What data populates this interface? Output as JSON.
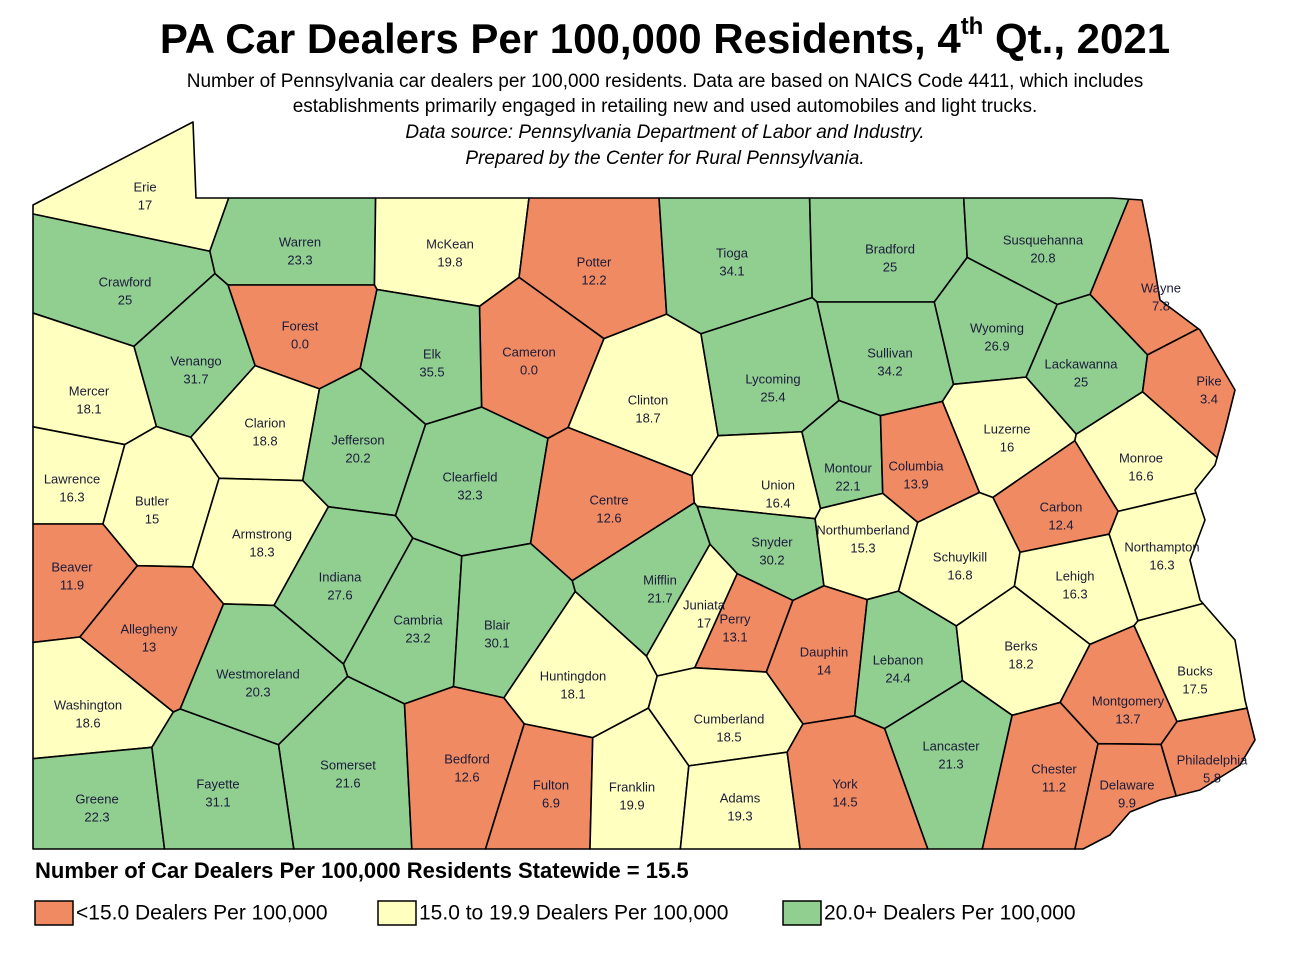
{
  "title": {
    "main": "PA Car Dealers Per 100,000 Residents, 4",
    "superscript": "th",
    "rest": " Qt., 2021"
  },
  "subtitle": [
    "Number of Pennsylvania car dealers per 100,000 residents. Data are based on NAICS Code 4411, which includes",
    "establishments primarily engaged in retailing new and used automobiles and light trucks.",
    "Data source: Pennsylvania Department of Labor and Industry.",
    "Prepared by the Center for Rural Pennsylvania."
  ],
  "counties": [
    {
      "name": "Erie",
      "value": 17
    },
    {
      "name": "Warren",
      "value": 23.3
    },
    {
      "name": "McKean",
      "value": 19.8
    },
    {
      "name": "Potter",
      "value": 12.2
    },
    {
      "name": "Tioga",
      "value": 34.1
    },
    {
      "name": "Bradford",
      "value": 25
    },
    {
      "name": "Susquehanna",
      "value": 20.8
    },
    {
      "name": "Wayne",
      "value": 7.8
    },
    {
      "name": "Crawford",
      "value": 25
    },
    {
      "name": "Forest",
      "value": 0,
      "value_label": "0.0"
    },
    {
      "name": "Cameron",
      "value": 0,
      "value_label": "0.0"
    },
    {
      "name": "Elk",
      "value": 35.5
    },
    {
      "name": "Venango",
      "value": 31.7
    },
    {
      "name": "Mercer",
      "value": 18.1
    },
    {
      "name": "Clarion",
      "value": 18.8
    },
    {
      "name": "Jefferson",
      "value": 20.2
    },
    {
      "name": "Clearfield",
      "value": 32.3
    },
    {
      "name": "Clinton",
      "value": 18.7
    },
    {
      "name": "Lycoming",
      "value": 25.4
    },
    {
      "name": "Sullivan",
      "value": 34.2
    },
    {
      "name": "Wyoming",
      "value": 26.9
    },
    {
      "name": "Lackawanna",
      "value": 25
    },
    {
      "name": "Pike",
      "value": 3.4
    },
    {
      "name": "Luzerne",
      "value": 16
    },
    {
      "name": "Lawrence",
      "value": 16.3
    },
    {
      "name": "Butler",
      "value": 15
    },
    {
      "name": "Centre",
      "value": 12.6
    },
    {
      "name": "Union",
      "value": 16.4
    },
    {
      "name": "Montour",
      "value": 22.1
    },
    {
      "name": "Columbia",
      "value": 13.9
    },
    {
      "name": "Monroe",
      "value": 16.6
    },
    {
      "name": "Carbon",
      "value": 12.4
    },
    {
      "name": "Armstrong",
      "value": 18.3
    },
    {
      "name": "Snyder",
      "value": 30.2
    },
    {
      "name": "Northumberland",
      "value": 15.3
    },
    {
      "name": "Schuylkill",
      "value": 16.8
    },
    {
      "name": "Northampton",
      "value": 16.3
    },
    {
      "name": "Beaver",
      "value": 11.9
    },
    {
      "name": "Indiana",
      "value": 27.6
    },
    {
      "name": "Mifflin",
      "value": 21.7
    },
    {
      "name": "Lehigh",
      "value": 16.3
    },
    {
      "name": "Juniata",
      "value": 17
    },
    {
      "name": "Allegheny",
      "value": 13
    },
    {
      "name": "Cambria",
      "value": 23.2
    },
    {
      "name": "Blair",
      "value": 30.1
    },
    {
      "name": "Perry",
      "value": 13.1
    },
    {
      "name": "Dauphin",
      "value": 14
    },
    {
      "name": "Lebanon",
      "value": 24.4
    },
    {
      "name": "Berks",
      "value": 18.2
    },
    {
      "name": "Westmoreland",
      "value": 20.3
    },
    {
      "name": "Huntingdon",
      "value": 18.1
    },
    {
      "name": "Bucks",
      "value": 17.5
    },
    {
      "name": "Montgomery",
      "value": 13.7
    },
    {
      "name": "Washington",
      "value": 18.6
    },
    {
      "name": "Cumberland",
      "value": 18.5
    },
    {
      "name": "Lancaster",
      "value": 21.3
    },
    {
      "name": "Philadelphia",
      "value": 5.8
    },
    {
      "name": "Somerset",
      "value": 21.6
    },
    {
      "name": "Bedford",
      "value": 12.6
    },
    {
      "name": "Fulton",
      "value": 6.9
    },
    {
      "name": "Franklin",
      "value": 19.9
    },
    {
      "name": "Adams",
      "value": 19.3
    },
    {
      "name": "York",
      "value": 14.5
    },
    {
      "name": "Chester",
      "value": 11.2
    },
    {
      "name": "Delaware",
      "value": 9.9
    },
    {
      "name": "Greene",
      "value": 22.3
    },
    {
      "name": "Fayette",
      "value": 31.1
    }
  ],
  "statewide": "Number of Car Dealers Per 100,000 Residents Statewide = 15.5",
  "legend": [
    {
      "label": "<15.0 Dealers Per 100,000",
      "color": "#ef8a62"
    },
    {
      "label": "15.0 to 19.9 Dealers Per 100,000",
      "color": "#ffffbf",
      "from": 15.0
    },
    {
      "label": "20.0+ Dealers Per 100,000",
      "color": "#91cf91",
      "from": 20.0
    }
  ]
}
